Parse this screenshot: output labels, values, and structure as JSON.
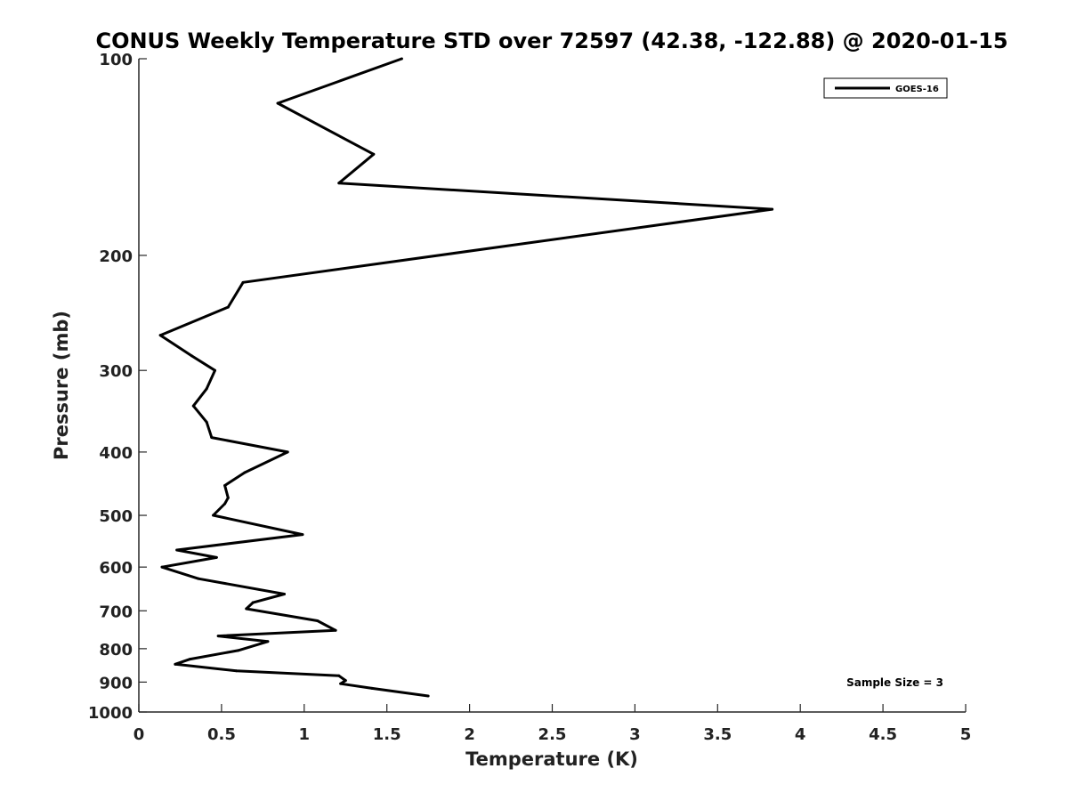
{
  "chart_data": {
    "type": "line",
    "title": "CONUS Weekly Temperature STD over 72597 (42.38, -122.88) @ 2020-01-15",
    "xlabel": "Temperature (K)",
    "ylabel": "Pressure (mb)",
    "xlim": [
      0,
      5
    ],
    "ylim": [
      1000,
      100
    ],
    "yscale": "log",
    "y_reversed": true,
    "grid": false,
    "xticks": [
      0,
      0.5,
      1,
      1.5,
      2,
      2.5,
      3,
      3.5,
      4,
      4.5,
      5
    ],
    "xtick_labels": [
      "0",
      "0.5",
      "1",
      "1.5",
      "2",
      "2.5",
      "3",
      "3.5",
      "4",
      "4.5",
      "5"
    ],
    "yticks": [
      100,
      200,
      300,
      400,
      500,
      600,
      700,
      800,
      900,
      1000
    ],
    "ytick_labels": [
      "100",
      "200",
      "300",
      "400",
      "500",
      "600",
      "700",
      "800",
      "900",
      "1000"
    ],
    "legend": {
      "placement": "top-right",
      "entries": [
        "GOES-16"
      ]
    },
    "annotation": "Sample Size = 3",
    "series": [
      {
        "name": "GOES-16",
        "color": "#000000",
        "points": [
          [
            1.59,
            100
          ],
          [
            0.84,
            117
          ],
          [
            1.42,
            140
          ],
          [
            1.21,
            155
          ],
          [
            3.83,
            170
          ],
          [
            0.63,
            220
          ],
          [
            0.54,
            240
          ],
          [
            0.13,
            265
          ],
          [
            0.32,
            285
          ],
          [
            0.46,
            300
          ],
          [
            0.41,
            320
          ],
          [
            0.33,
            340
          ],
          [
            0.41,
            360
          ],
          [
            0.44,
            380
          ],
          [
            0.9,
            400
          ],
          [
            0.64,
            430
          ],
          [
            0.52,
            450
          ],
          [
            0.54,
            470
          ],
          [
            0.52,
            480
          ],
          [
            0.45,
            500
          ],
          [
            0.99,
            535
          ],
          [
            0.23,
            565
          ],
          [
            0.47,
            580
          ],
          [
            0.14,
            600
          ],
          [
            0.36,
            625
          ],
          [
            0.88,
            660
          ],
          [
            0.69,
            680
          ],
          [
            0.65,
            695
          ],
          [
            1.08,
            725
          ],
          [
            1.19,
            750
          ],
          [
            0.48,
            765
          ],
          [
            0.78,
            780
          ],
          [
            0.6,
            805
          ],
          [
            0.31,
            830
          ],
          [
            0.22,
            845
          ],
          [
            0.59,
            865
          ],
          [
            1.21,
            880
          ],
          [
            1.25,
            895
          ],
          [
            1.22,
            905
          ],
          [
            1.41,
            920
          ],
          [
            1.75,
            945
          ]
        ]
      }
    ]
  }
}
